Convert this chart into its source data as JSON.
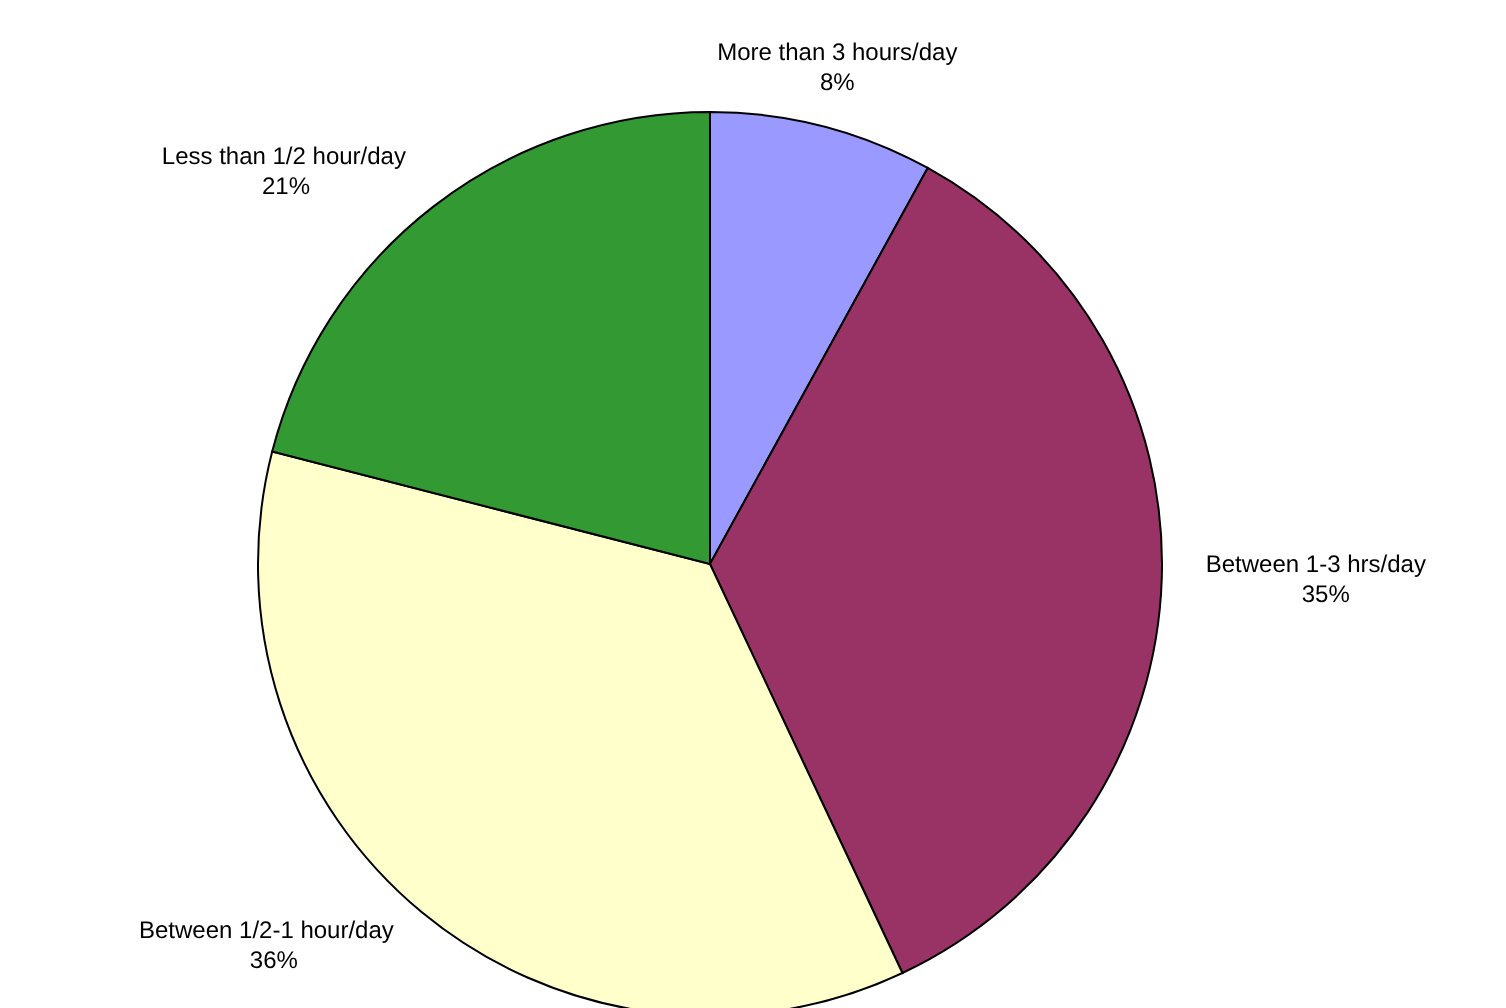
{
  "chart_data": {
    "type": "pie",
    "categories": [
      "More than 3 hours/day",
      "Between 1-3 hrs/day",
      "Between 1/2-1 hour/day",
      "Less than 1/2 hour/day"
    ],
    "values": [
      8,
      35,
      36,
      21
    ],
    "value_labels": [
      "8%",
      "35%",
      "36%",
      "21%"
    ],
    "colors": [
      "#9999ff",
      "#993366",
      "#ffffcc",
      "#339933"
    ],
    "legend": false
  }
}
